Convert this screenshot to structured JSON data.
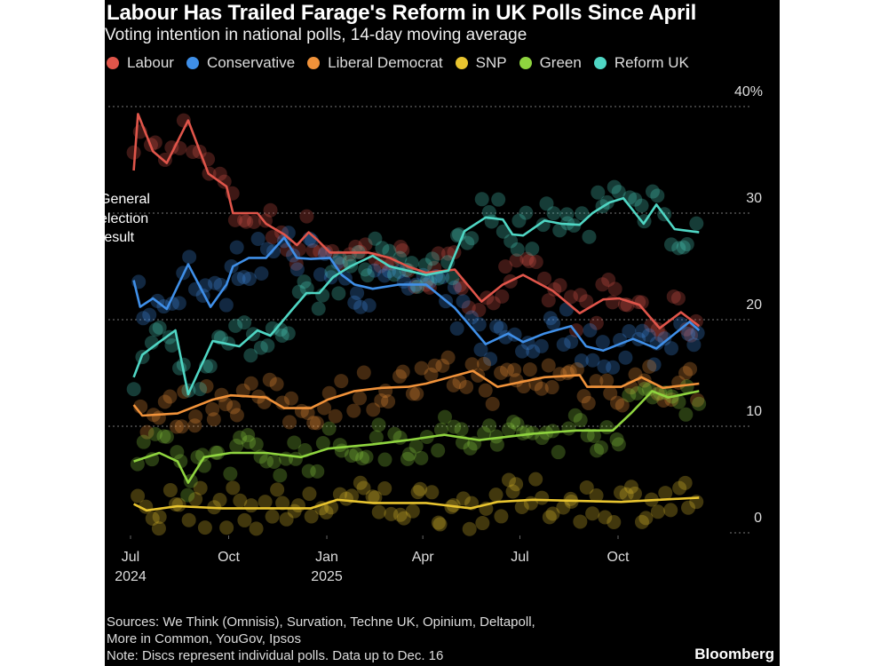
{
  "chart_data": {
    "type": "line",
    "title": "Labour Has Trailed Farage's Reform in UK Polls Since April",
    "subtitle": "Voting intention in national polls, 14-day moving average",
    "annotation": [
      "General",
      "election",
      "result"
    ],
    "y_unit": "%",
    "ylim": [
      0,
      40
    ],
    "y_ticks": [
      {
        "v": 0,
        "label": "0"
      },
      {
        "v": 10,
        "label": "10"
      },
      {
        "v": 20,
        "label": "20"
      },
      {
        "v": 30,
        "label": "30"
      },
      {
        "v": 40,
        "label": "40%"
      }
    ],
    "x_ticks": [
      {
        "date": "2024-07-01",
        "label": "Jul",
        "year": "2024"
      },
      {
        "date": "2024-10-01",
        "label": "Oct",
        "year": ""
      },
      {
        "date": "2025-01-01",
        "label": "Jan",
        "year": "2025"
      },
      {
        "date": "2025-04-01",
        "label": "Apr",
        "year": ""
      },
      {
        "date": "2025-07-01",
        "label": "Jul",
        "year": ""
      },
      {
        "date": "2025-10-01",
        "label": "Oct",
        "year": ""
      }
    ],
    "xlim": [
      "2024-06-20",
      "2025-12-31"
    ],
    "grid": true,
    "legend_position": "top",
    "series": [
      {
        "name": "Labour",
        "color": "#e0554a",
        "points": [
          [
            "2024-07-04",
            34
          ],
          [
            "2024-07-08",
            39.3
          ],
          [
            "2024-07-22",
            35.8
          ],
          [
            "2024-08-04",
            34.7
          ],
          [
            "2024-08-24",
            38.7
          ],
          [
            "2024-09-12",
            33.7
          ],
          [
            "2024-09-29",
            32.5
          ],
          [
            "2024-10-05",
            30
          ],
          [
            "2024-10-28",
            30
          ],
          [
            "2024-11-05",
            29
          ],
          [
            "2024-11-22",
            28
          ],
          [
            "2024-12-04",
            27
          ],
          [
            "2024-12-15",
            28.2
          ],
          [
            "2024-12-23",
            27.5
          ],
          [
            "2025-01-04",
            26.3
          ],
          [
            "2025-01-23",
            26.3
          ],
          [
            "2025-02-09",
            26.3
          ],
          [
            "2025-03-01",
            25.8
          ],
          [
            "2025-03-18",
            25
          ],
          [
            "2025-04-04",
            24.4
          ],
          [
            "2025-05-01",
            24.7
          ],
          [
            "2025-05-26",
            21.7
          ],
          [
            "2025-06-15",
            23.3
          ],
          [
            "2025-07-04",
            24.2
          ],
          [
            "2025-08-01",
            22.7
          ],
          [
            "2025-08-26",
            20.6
          ],
          [
            "2025-09-17",
            21.9
          ],
          [
            "2025-10-02",
            22
          ],
          [
            "2025-10-21",
            21.4
          ],
          [
            "2025-11-09",
            19.2
          ],
          [
            "2025-11-29",
            20.7
          ],
          [
            "2025-12-16",
            19.4
          ]
        ]
      },
      {
        "name": "Conservative",
        "color": "#3f8fe8",
        "points": [
          [
            "2024-07-04",
            23.7
          ],
          [
            "2024-07-10",
            21.2
          ],
          [
            "2024-07-22",
            22
          ],
          [
            "2024-08-04",
            21
          ],
          [
            "2024-08-24",
            25.2
          ],
          [
            "2024-09-14",
            21.2
          ],
          [
            "2024-09-29",
            23.3
          ],
          [
            "2024-10-05",
            25
          ],
          [
            "2024-10-20",
            25.8
          ],
          [
            "2024-11-05",
            25.8
          ],
          [
            "2024-11-22",
            27.7
          ],
          [
            "2024-12-04",
            25.8
          ],
          [
            "2024-12-17",
            25.7
          ],
          [
            "2025-01-04",
            25.8
          ],
          [
            "2025-01-15",
            24.2
          ],
          [
            "2025-01-27",
            23.3
          ],
          [
            "2025-02-13",
            22.9
          ],
          [
            "2025-03-10",
            23.3
          ],
          [
            "2025-04-04",
            23.3
          ],
          [
            "2025-05-01",
            21.1
          ],
          [
            "2025-05-30",
            17.7
          ],
          [
            "2025-06-20",
            18.7
          ],
          [
            "2025-07-04",
            17.9
          ],
          [
            "2025-07-24",
            18.7
          ],
          [
            "2025-08-18",
            19.4
          ],
          [
            "2025-09-01",
            17.5
          ],
          [
            "2025-09-17",
            17.1
          ],
          [
            "2025-10-15",
            18.2
          ],
          [
            "2025-11-06",
            17.3
          ],
          [
            "2025-12-07",
            19.8
          ],
          [
            "2025-12-16",
            19
          ]
        ]
      },
      {
        "name": "Liberal Democrat",
        "color": "#f0923a",
        "points": [
          [
            "2024-07-04",
            12
          ],
          [
            "2024-07-12",
            11
          ],
          [
            "2024-08-14",
            11.2
          ],
          [
            "2024-09-16",
            12.5
          ],
          [
            "2024-10-03",
            12.9
          ],
          [
            "2024-11-05",
            12.7
          ],
          [
            "2024-11-22",
            11.7
          ],
          [
            "2024-12-17",
            11.7
          ],
          [
            "2025-01-02",
            12.5
          ],
          [
            "2025-01-27",
            13.3
          ],
          [
            "2025-02-21",
            13.6
          ],
          [
            "2025-03-18",
            13.7
          ],
          [
            "2025-04-04",
            14
          ],
          [
            "2025-05-18",
            15.2
          ],
          [
            "2025-06-10",
            13.7
          ],
          [
            "2025-07-24",
            14.6
          ],
          [
            "2025-08-26",
            14.8
          ],
          [
            "2025-09-02",
            13.7
          ],
          [
            "2025-10-04",
            13.7
          ],
          [
            "2025-10-23",
            14.6
          ],
          [
            "2025-11-12",
            13.6
          ],
          [
            "2025-12-16",
            14
          ]
        ]
      },
      {
        "name": "SNP",
        "color": "#e8c42f",
        "points": [
          [
            "2024-07-04",
            2.7
          ],
          [
            "2024-07-16",
            2.1
          ],
          [
            "2024-08-14",
            2.5
          ],
          [
            "2024-09-25",
            2.3
          ],
          [
            "2024-11-05",
            2.3
          ],
          [
            "2024-12-17",
            2.3
          ],
          [
            "2025-01-11",
            3.1
          ],
          [
            "2025-02-13",
            2.8
          ],
          [
            "2025-04-04",
            2.8
          ],
          [
            "2025-05-16",
            2.3
          ],
          [
            "2025-06-10",
            2.9
          ],
          [
            "2025-07-13",
            3.1
          ],
          [
            "2025-10-04",
            2.9
          ],
          [
            "2025-12-16",
            3.3
          ]
        ]
      },
      {
        "name": "Green",
        "color": "#8fd43f",
        "points": [
          [
            "2024-07-04",
            6.7
          ],
          [
            "2024-07-28",
            7.5
          ],
          [
            "2024-08-14",
            6.7
          ],
          [
            "2024-08-24",
            4.7
          ],
          [
            "2024-09-08",
            7.1
          ],
          [
            "2024-10-03",
            7.5
          ],
          [
            "2024-11-05",
            7.5
          ],
          [
            "2024-12-08",
            7.1
          ],
          [
            "2025-01-02",
            7.9
          ],
          [
            "2025-02-13",
            8.3
          ],
          [
            "2025-03-18",
            8.7
          ],
          [
            "2025-04-21",
            9.2
          ],
          [
            "2025-05-24",
            8.7
          ],
          [
            "2025-07-13",
            9.3
          ],
          [
            "2025-08-23",
            9.6
          ],
          [
            "2025-09-26",
            9.6
          ],
          [
            "2025-10-13",
            11.2
          ],
          [
            "2025-11-02",
            13.3
          ],
          [
            "2025-11-17",
            12.7
          ],
          [
            "2025-12-16",
            13.3
          ]
        ]
      },
      {
        "name": "Reform UK",
        "color": "#4fd6c4",
        "points": [
          [
            "2024-07-04",
            14.6
          ],
          [
            "2024-07-12",
            16.7
          ],
          [
            "2024-07-28",
            17.9
          ],
          [
            "2024-08-12",
            19
          ],
          [
            "2024-08-24",
            13
          ],
          [
            "2024-09-16",
            18
          ],
          [
            "2024-10-11",
            17.5
          ],
          [
            "2024-10-28",
            19
          ],
          [
            "2024-11-09",
            18.5
          ],
          [
            "2024-11-30",
            21
          ],
          [
            "2024-12-13",
            22.5
          ],
          [
            "2024-12-25",
            22.5
          ],
          [
            "2025-01-07",
            24
          ],
          [
            "2025-01-23",
            25
          ],
          [
            "2025-02-13",
            26
          ],
          [
            "2025-03-01",
            25
          ],
          [
            "2025-03-18",
            24.6
          ],
          [
            "2025-04-04",
            24.2
          ],
          [
            "2025-04-25",
            24.6
          ],
          [
            "2025-05-10",
            28.3
          ],
          [
            "2025-05-30",
            29.6
          ],
          [
            "2025-06-15",
            29.4
          ],
          [
            "2025-06-24",
            28
          ],
          [
            "2025-07-04",
            27.9
          ],
          [
            "2025-07-24",
            29.3
          ],
          [
            "2025-08-09",
            29
          ],
          [
            "2025-08-26",
            28.9
          ],
          [
            "2025-09-07",
            30
          ],
          [
            "2025-09-23",
            31
          ],
          [
            "2025-10-06",
            31.4
          ],
          [
            "2025-10-25",
            29
          ],
          [
            "2025-11-06",
            30.8
          ],
          [
            "2025-11-23",
            28.5
          ],
          [
            "2025-12-16",
            28.2
          ]
        ]
      }
    ]
  },
  "footer": {
    "sources_line1": "Sources: We Think (Omnisis), Survation, Techne UK, Opinium, Deltapoll,",
    "sources_line2": "More in Common, YouGov, Ipsos",
    "note": "Note: Discs represent individual polls. Data up to Dec. 16",
    "brand": "Bloomberg"
  }
}
